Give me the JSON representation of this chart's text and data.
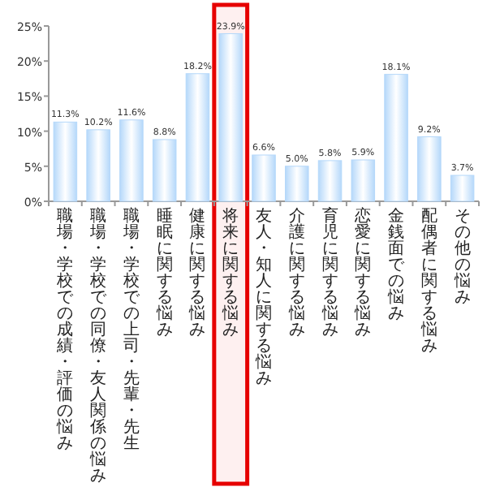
{
  "chart_data": {
    "type": "bar",
    "categories": [
      "職場・学校での成績・評価の悩み",
      "職場・学校での同僚・友人関係の悩み",
      "職場・学校での上司・先輩・先生",
      "睡眠に関する悩み",
      "健康に関する悩み",
      "将来に関する悩み",
      "友人・知人に関する悩み",
      "介護に関する悩み",
      "育児に関する悩み",
      "恋愛に関する悩み",
      "金銭面での悩み",
      "配偶者に関する悩み",
      "その他の悩み"
    ],
    "values": [
      11.3,
      10.2,
      11.6,
      8.8,
      18.2,
      23.9,
      6.6,
      5.0,
      5.8,
      5.9,
      18.1,
      9.2,
      3.7
    ],
    "value_labels": [
      "11.3%",
      "10.2%",
      "11.6%",
      "8.8%",
      "18.2%",
      "23.9%",
      "6.6%",
      "5.0%",
      "5.8%",
      "5.9%",
      "18.1%",
      "9.2%",
      "3.7%"
    ],
    "color": "#b5d8fa",
    "ylim": [
      0,
      25
    ],
    "yticks": [
      {
        "value": 0,
        "label": "0%"
      },
      {
        "value": 5,
        "label": "5%"
      },
      {
        "value": 10,
        "label": "10%"
      },
      {
        "value": 15,
        "label": "15%"
      },
      {
        "value": 20,
        "label": "20%"
      },
      {
        "value": 25,
        "label": "25%"
      }
    ],
    "bands": [
      {
        "axis": "x",
        "from": "将来に関する悩み",
        "to": "将来に関する悩み",
        "color": "#e60000"
      }
    ],
    "grid": false
  }
}
